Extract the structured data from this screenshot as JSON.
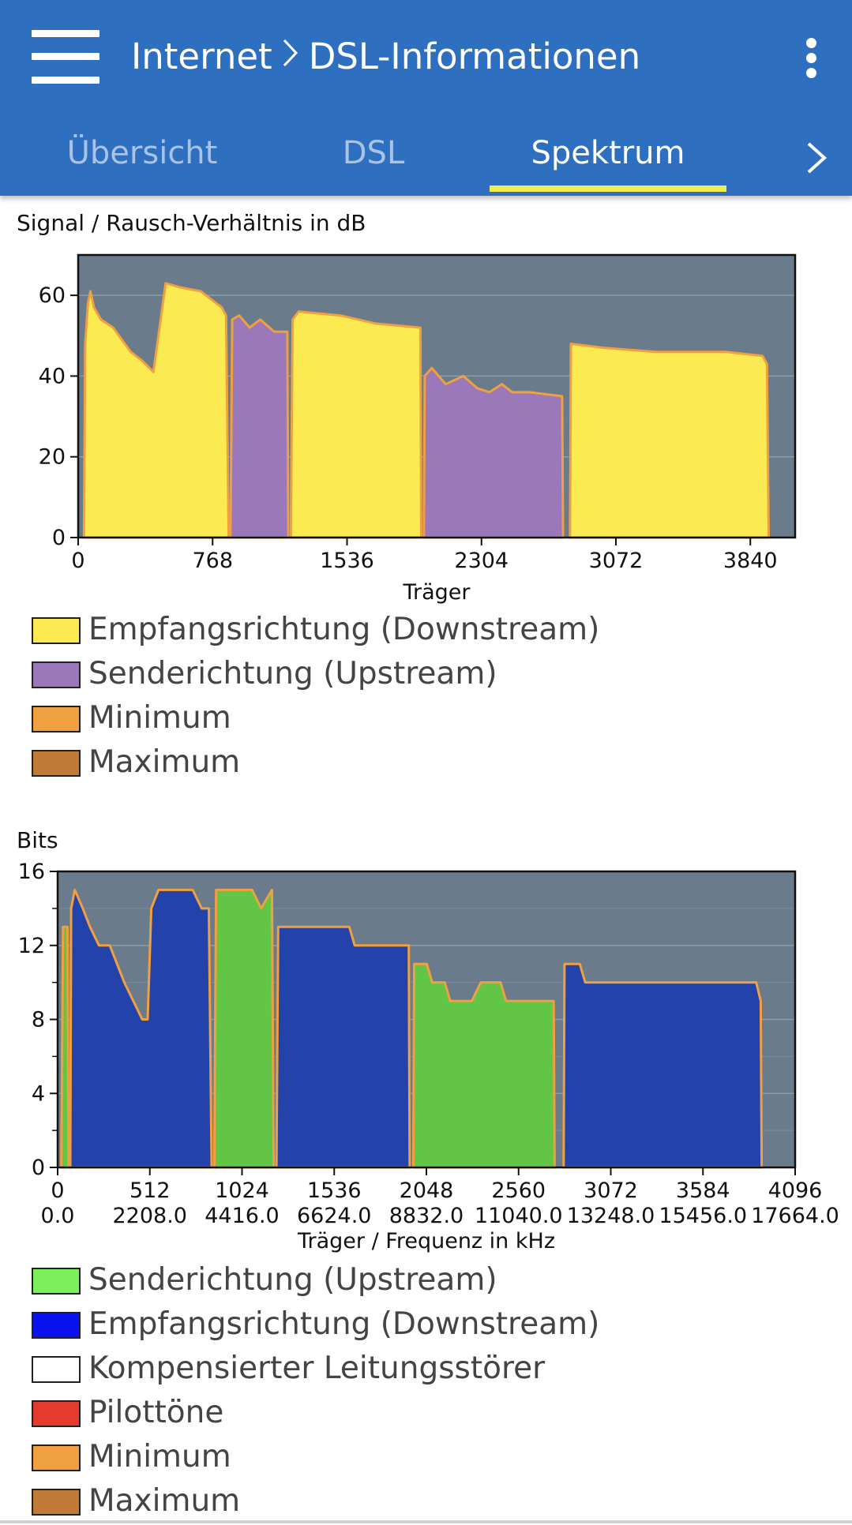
{
  "header": {
    "breadcrumb_root": "Internet",
    "breadcrumb_separator": "›",
    "breadcrumb_current": "DSL-Informationen",
    "menu_icon": "hamburger-icon",
    "overflow_icon": "more-vertical-icon",
    "tabs": [
      {
        "label": "Übersicht",
        "active": false
      },
      {
        "label": "DSL",
        "active": false
      },
      {
        "label": "Spektrum",
        "active": true
      }
    ],
    "tab_next_icon": "chevron-right-icon"
  },
  "colors": {
    "appbar": "#2f6fbf",
    "plot_bg": "#6a7b8b",
    "downstream_snr": "#fcea52",
    "upstream_snr": "#9a78b9",
    "minimum": "#f0a040",
    "maximum": "#c07a36",
    "upstream_bits": "#62c545",
    "downstream_bits": "#2343ab",
    "pilot": "#e53a2e",
    "tab_indicator": "#f0ec4f"
  },
  "chart_data": [
    {
      "type": "area",
      "title": "Signal / Rausch-Verhältnis in dB",
      "xlabel": "Träger",
      "ylabel": "",
      "xlim": [
        0,
        4096
      ],
      "ylim": [
        0,
        70
      ],
      "xticks": [
        0,
        768,
        1536,
        2304,
        3072,
        3840
      ],
      "yticks": [
        0,
        20,
        40,
        60
      ],
      "series": [
        {
          "name": "Empfangsrichtung (Downstream)",
          "color": "#fcea52",
          "points": [
            [
              33,
              0
            ],
            [
              40,
              48
            ],
            [
              56,
              58
            ],
            [
              70,
              61
            ],
            [
              90,
              57
            ],
            [
              130,
              54
            ],
            [
              200,
              52
            ],
            [
              300,
              46
            ],
            [
              360,
              44
            ],
            [
              430,
              41
            ],
            [
              500,
              63
            ],
            [
              580,
              62
            ],
            [
              700,
              61
            ],
            [
              820,
              57
            ],
            [
              845,
              55
            ],
            [
              860,
              0
            ]
          ]
        },
        {
          "name": "Senderichtung (Upstream)",
          "color": "#9a78b9",
          "points": [
            [
              870,
              0
            ],
            [
              880,
              54
            ],
            [
              920,
              55
            ],
            [
              980,
              52
            ],
            [
              1040,
              54
            ],
            [
              1120,
              51
            ],
            [
              1195,
              51
            ],
            [
              1200,
              0
            ]
          ]
        },
        {
          "name": "Empfangsrichtung (Downstream)",
          "color": "#fcea52",
          "points": [
            [
              1215,
              0
            ],
            [
              1225,
              54
            ],
            [
              1260,
              56
            ],
            [
              1500,
              55
            ],
            [
              1700,
              53
            ],
            [
              1955,
              52
            ],
            [
              1960,
              0
            ]
          ]
        },
        {
          "name": "Senderichtung (Upstream)",
          "color": "#9a78b9",
          "points": [
            [
              1975,
              0
            ],
            [
              1980,
              40
            ],
            [
              2020,
              42
            ],
            [
              2100,
              38
            ],
            [
              2200,
              40
            ],
            [
              2280,
              37
            ],
            [
              2350,
              36
            ],
            [
              2420,
              38
            ],
            [
              2480,
              36
            ],
            [
              2580,
              36
            ],
            [
              2765,
              35
            ],
            [
              2770,
              0
            ]
          ]
        },
        {
          "name": "Empfangsrichtung (Downstream)",
          "color": "#fcea52",
          "points": [
            [
              2810,
              0
            ],
            [
              2815,
              48
            ],
            [
              3000,
              47
            ],
            [
              3300,
              46
            ],
            [
              3700,
              46
            ],
            [
              3910,
              45
            ],
            [
              3935,
              43
            ],
            [
              3945,
              0
            ]
          ]
        }
      ],
      "legend": [
        {
          "label": "Empfangsrichtung (Downstream)",
          "color": "#fcea52"
        },
        {
          "label": "Senderichtung (Upstream)",
          "color": "#9a78b9"
        },
        {
          "label": "Minimum",
          "color": "#f0a040"
        },
        {
          "label": "Maximum",
          "color": "#c07a36"
        }
      ]
    },
    {
      "type": "area",
      "title": "Bits",
      "xlabel": "Träger / Frequenz in kHz",
      "ylabel": "",
      "xlim": [
        0,
        4096
      ],
      "ylim": [
        0,
        16
      ],
      "xticks": [
        0,
        512,
        1024,
        1536,
        2048,
        2560,
        3072,
        3584,
        4096
      ],
      "xticks_secondary": [
        "0.0",
        "2208.0",
        "4416.0",
        "6624.0",
        "8832.0",
        "11040.0",
        "13248.0",
        "15456.0",
        "17664.0"
      ],
      "yticks": [
        0,
        4,
        8,
        12,
        16
      ],
      "series": [
        {
          "name": "Senderichtung (Upstream)",
          "color": "#62c545",
          "points": [
            [
              20,
              0
            ],
            [
              30,
              13
            ],
            [
              55,
              13
            ],
            [
              60,
              0
            ]
          ]
        },
        {
          "name": "Empfangsrichtung (Downstream)",
          "color": "#2343ab",
          "points": [
            [
              70,
              0
            ],
            [
              75,
              14
            ],
            [
              95,
              15
            ],
            [
              140,
              14
            ],
            [
              180,
              13
            ],
            [
              230,
              12
            ],
            [
              290,
              12
            ],
            [
              330,
              11
            ],
            [
              370,
              10
            ],
            [
              420,
              9
            ],
            [
              470,
              8
            ],
            [
              500,
              8
            ],
            [
              520,
              14
            ],
            [
              560,
              15
            ],
            [
              750,
              15
            ],
            [
              800,
              14
            ],
            [
              840,
              14
            ],
            [
              855,
              0
            ]
          ]
        },
        {
          "name": "Senderichtung (Upstream)",
          "color": "#62c545",
          "points": [
            [
              870,
              0
            ],
            [
              880,
              15
            ],
            [
              1080,
              15
            ],
            [
              1130,
              14
            ],
            [
              1190,
              15
            ],
            [
              1200,
              0
            ]
          ]
        },
        {
          "name": "Empfangsrichtung (Downstream)",
          "color": "#2343ab",
          "points": [
            [
              1215,
              0
            ],
            [
              1225,
              13
            ],
            [
              1620,
              13
            ],
            [
              1650,
              12
            ],
            [
              1950,
              12
            ],
            [
              1955,
              0
            ]
          ]
        },
        {
          "name": "Senderichtung (Upstream)",
          "color": "#62c545",
          "points": [
            [
              1975,
              0
            ],
            [
              1980,
              11
            ],
            [
              2050,
              11
            ],
            [
              2080,
              10
            ],
            [
              2150,
              10
            ],
            [
              2180,
              9
            ],
            [
              2300,
              9
            ],
            [
              2350,
              10
            ],
            [
              2460,
              10
            ],
            [
              2490,
              9
            ],
            [
              2700,
              9
            ],
            [
              2755,
              9
            ],
            [
              2760,
              0
            ]
          ]
        },
        {
          "name": "Empfangsrichtung (Downstream)",
          "color": "#2343ab",
          "points": [
            [
              2810,
              0
            ],
            [
              2815,
              11
            ],
            [
              2900,
              11
            ],
            [
              2930,
              10
            ],
            [
              3050,
              10
            ],
            [
              3200,
              10
            ],
            [
              3600,
              10
            ],
            [
              3880,
              10
            ],
            [
              3905,
              9
            ],
            [
              3910,
              0
            ]
          ]
        }
      ],
      "legend": [
        {
          "label": "Senderichtung (Upstream)",
          "color": "#7cf05a"
        },
        {
          "label": "Empfangsrichtung (Downstream)",
          "color": "#0a12f0"
        },
        {
          "label": "Kompensierter Leitungsstörer",
          "color": "#ffffff"
        },
        {
          "label": "Pilottöne",
          "color": "#e53a2e"
        },
        {
          "label": "Minimum",
          "color": "#f0a040"
        },
        {
          "label": "Maximum",
          "color": "#c07a36"
        }
      ]
    }
  ]
}
